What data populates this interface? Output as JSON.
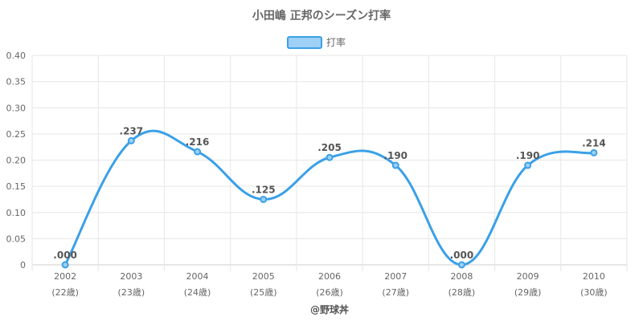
{
  "chart_data": {
    "type": "line",
    "title": "小田嶋 正邦のシーズン打率",
    "categories": [
      "2002",
      "2003",
      "2004",
      "2005",
      "2006",
      "2007",
      "2008",
      "2009",
      "2010"
    ],
    "sublabels": [
      "(22歳)",
      "(23歳)",
      "(24歳)",
      "(25歳)",
      "(26歳)",
      "(27歳)",
      "(28歳)",
      "(29歳)",
      "(30歳)"
    ],
    "series": [
      {
        "name": "打率",
        "values": [
          0.0,
          0.237,
          0.216,
          0.125,
          0.205,
          0.19,
          0.0,
          0.19,
          0.214
        ],
        "labels": [
          ".000",
          ".237",
          ".216",
          ".125",
          ".205",
          ".190",
          ".000",
          ".190",
          ".214"
        ]
      }
    ],
    "yticks": [
      "0",
      "0.05",
      "0.10",
      "0.15",
      "0.20",
      "0.25",
      "0.30",
      "0.35",
      "0.40"
    ],
    "ylim": [
      0,
      0.4
    ],
    "grid": true,
    "legend": "top",
    "colors": {
      "line": "#3aa0e8",
      "legend_fill": "#9fd0f5",
      "grid": "#e6e6e6",
      "axis": "#cccccc"
    }
  },
  "footer": "@野球丼"
}
